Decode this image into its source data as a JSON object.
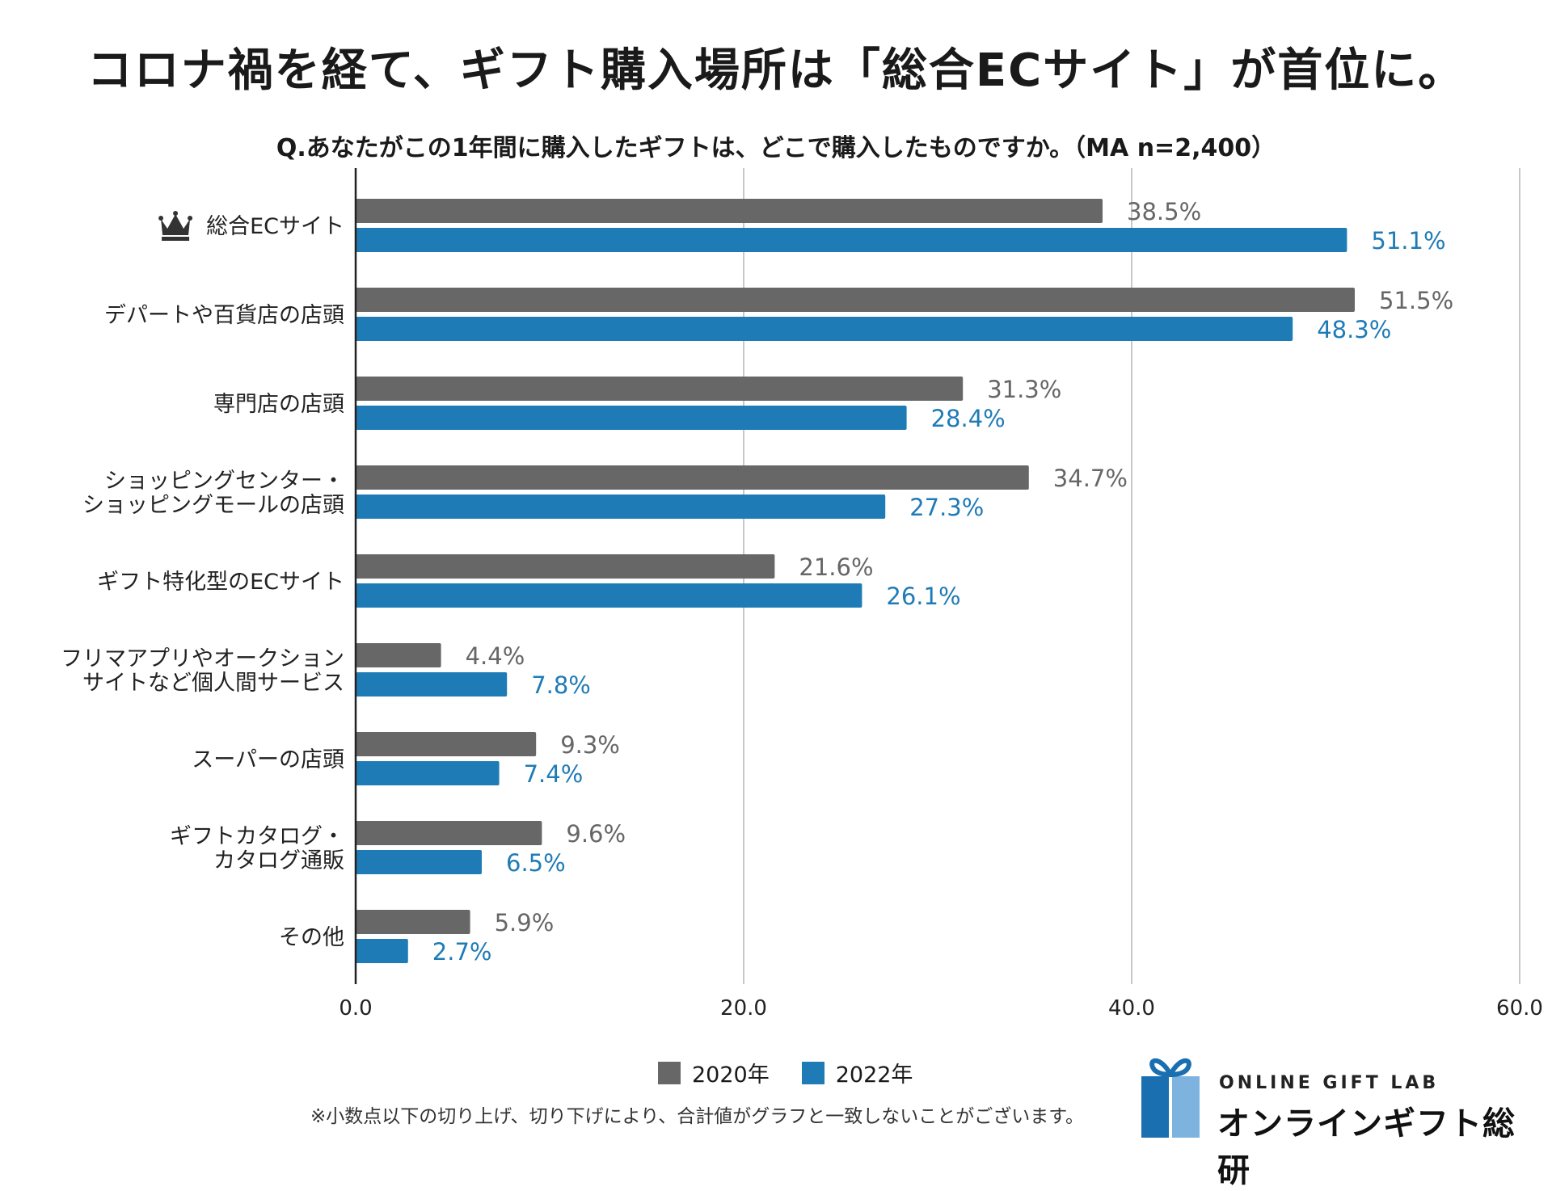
{
  "headline": "コロナ禍を経て、ギフト購入場所は「総合ECサイト」が首位に。",
  "chart_data": {
    "type": "bar",
    "orientation": "horizontal",
    "title": "Q.あなたがこの1年間に購入したギフトは、どこで購入したものですか。（MA n=2,400）",
    "categories": [
      "総合ECサイト",
      "デパートや百貨店の店頭",
      "専門店の店頭",
      "ショッピングセンター・\nショッピングモールの店頭",
      "ギフト特化型のECサイト",
      "フリマアプリやオークション\nサイトなど個人間サービス",
      "スーパーの店頭",
      "ギフトカタログ・\nカタログ通販",
      "その他"
    ],
    "series": [
      {
        "name": "2020年",
        "color": "#676767",
        "label_color": "#666666",
        "values": [
          38.5,
          51.5,
          31.3,
          34.7,
          21.6,
          4.4,
          9.3,
          9.6,
          5.9
        ],
        "labels": [
          "38.5%",
          "51.5%",
          "31.3%",
          "34.7%",
          "21.6%",
          "4.4%",
          "9.3%",
          "9.6%",
          "5.9%"
        ]
      },
      {
        "name": "2022年",
        "color": "#1f7bb6",
        "label_color": "#1f7bb6",
        "values": [
          51.1,
          48.3,
          28.4,
          27.3,
          26.1,
          7.8,
          7.4,
          6.5,
          2.7
        ],
        "labels": [
          "51.1%",
          "48.3%",
          "28.4%",
          "27.3%",
          "26.1%",
          "7.8%",
          "7.4%",
          "6.5%",
          "2.7%"
        ]
      }
    ],
    "xlim": [
      0,
      60
    ],
    "x_ticks": [
      0,
      20,
      40,
      60
    ],
    "x_tick_labels": [
      "0.0",
      "20.0",
      "40.0",
      "60.0"
    ],
    "grid": true,
    "legend_position": "bottom",
    "highlight_icon": "crown-icon"
  },
  "footnote": "※小数点以下の切り上げ、切り下げにより、合計値がグラフと一致しないことがございます。",
  "logo": {
    "en": "ONLINE GIFT LAB",
    "jp": "オンラインギフト総研",
    "icon": "gift-icon"
  }
}
